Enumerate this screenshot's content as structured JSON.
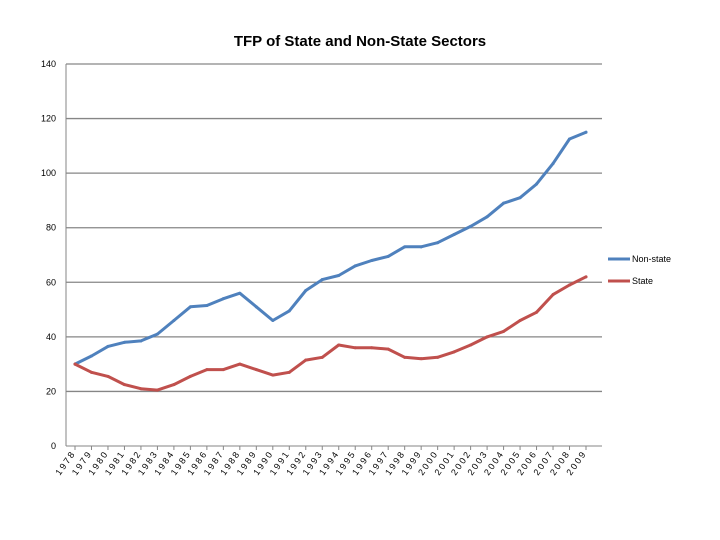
{
  "chart_data": {
    "type": "line",
    "title": "TFP of State and Non-State Sectors",
    "xlabel": "",
    "ylabel": "",
    "ylim": [
      0,
      140
    ],
    "yticks": [
      0,
      20,
      40,
      60,
      80,
      100,
      120,
      140
    ],
    "grid": "horizontal",
    "legend_position": "right",
    "categories": [
      "1978",
      "1979",
      "1980",
      "1981",
      "1982",
      "1983",
      "1984",
      "1985",
      "1986",
      "1987",
      "1988",
      "1989",
      "1990",
      "1991",
      "1992",
      "1993",
      "1994",
      "1995",
      "1996",
      "1997",
      "1998",
      "1999",
      "2000",
      "2001",
      "2002",
      "2003",
      "2004",
      "2005",
      "2006",
      "2007",
      "2008",
      "2009"
    ],
    "series": [
      {
        "name": "Non-state",
        "color": "#4F81BD",
        "values": [
          30,
          33,
          36.5,
          38,
          38.5,
          41,
          46,
          51,
          51.5,
          54,
          56,
          51,
          46,
          49.5,
          57,
          61,
          62.5,
          66,
          68,
          69.5,
          73,
          73,
          74.5,
          77.5,
          80.5,
          84,
          89,
          91,
          96,
          103.5,
          112.5,
          115
        ]
      },
      {
        "name": "State",
        "color": "#C0504D",
        "values": [
          30,
          27,
          25.5,
          22.5,
          21,
          20.5,
          22.5,
          25.5,
          28,
          28,
          30,
          28,
          26,
          27,
          31.5,
          32.5,
          37,
          36,
          36,
          35.5,
          32.5,
          32,
          32.5,
          34.5,
          37,
          40,
          42,
          46,
          49,
          55.5,
          59,
          62
        ]
      }
    ]
  }
}
